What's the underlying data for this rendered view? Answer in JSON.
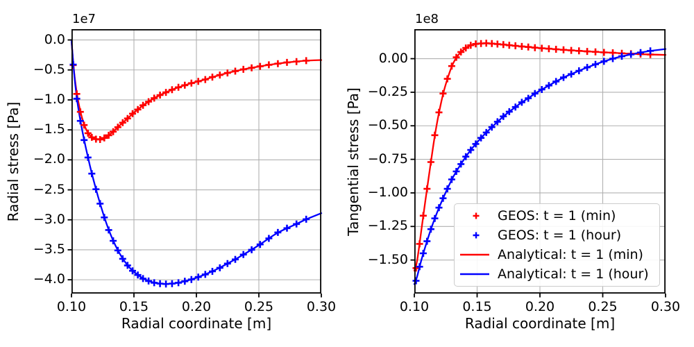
{
  "figure": {
    "background": "#ffffff"
  },
  "style": {
    "color_t1min": "#ff0000",
    "color_t1hour": "#0000ff",
    "grid_color": "#b0b0b0",
    "spine_color": "#000000",
    "text_color": "#000000",
    "legend_border_color": "#cccccc"
  },
  "left_plot": {
    "offset_label": "1e7",
    "ylabel": "Radial stress [Pa]",
    "xlabel": "Radial coordinate [m]",
    "xtick_labels": [
      "0.10",
      "0.15",
      "0.20",
      "0.25",
      "0.30"
    ],
    "ytick_labels": [
      "0.0",
      "−0.5",
      "−1.0",
      "−1.5",
      "−2.0",
      "−2.5",
      "−3.0",
      "−3.5",
      "−4.0"
    ]
  },
  "right_plot": {
    "offset_label": "1e8",
    "ylabel": "Tangential stress [Pa]",
    "xlabel": "Radial coordinate [m]",
    "xtick_labels": [
      "0.10",
      "0.15",
      "0.20",
      "0.25",
      "0.30"
    ],
    "ytick_labels": [
      "0.00",
      "−0.25",
      "−0.50",
      "−0.75",
      "−1.00",
      "−1.25",
      "−1.50"
    ],
    "legend": {
      "items": [
        {
          "label": "GEOS: t = 1 (min)",
          "type": "marker",
          "color": "#ff0000"
        },
        {
          "label": "GEOS: t = 1 (hour)",
          "type": "marker",
          "color": "#0000ff"
        },
        {
          "label": "Analytical: t = 1 (min)",
          "type": "line",
          "color": "#ff0000"
        },
        {
          "label": "Analytical: t = 1 (hour)",
          "type": "line",
          "color": "#0000ff"
        }
      ],
      "location": "lower right"
    }
  },
  "chart_data": [
    {
      "type": "line",
      "title": "",
      "xlabel": "Radial coordinate [m]",
      "ylabel": "Radial stress [Pa]",
      "y_scale_factor": "1e7",
      "grid": true,
      "xlim": [
        0.1,
        0.3
      ],
      "ylim": [
        -4.23,
        0.18
      ],
      "xticks": [
        0.1,
        0.15,
        0.2,
        0.25,
        0.3
      ],
      "yticks": [
        0.0,
        -0.5,
        -1.0,
        -1.5,
        -2.0,
        -2.5,
        -3.0,
        -3.5,
        -4.0
      ],
      "series": [
        {
          "name": "Analytical: t = 1 (min)",
          "style": "solid_line",
          "color": "#ff0000",
          "x": [
            0.1,
            0.1014,
            0.1042,
            0.1071,
            0.1101,
            0.1132,
            0.1163,
            0.1196,
            0.1229,
            0.1263,
            0.1298,
            0.1334,
            0.1371,
            0.141,
            0.1449,
            0.1489,
            0.1531,
            0.1573,
            0.1617,
            0.1662,
            0.1709,
            0.1756,
            0.1805,
            0.1856,
            0.1907,
            0.196,
            0.2015,
            0.2071,
            0.2128,
            0.2188,
            0.2249,
            0.2311,
            0.2376,
            0.2442,
            0.251,
            0.258,
            0.2652,
            0.2725,
            0.2801,
            0.2879,
            0.3
          ],
          "y": [
            0.0,
            -0.42,
            -0.9,
            -1.2,
            -1.42,
            -1.555,
            -1.625,
            -1.655,
            -1.66,
            -1.635,
            -1.59,
            -1.53,
            -1.455,
            -1.38,
            -1.31,
            -1.23,
            -1.16,
            -1.09,
            -1.03,
            -0.97,
            -0.92,
            -0.875,
            -0.83,
            -0.79,
            -0.755,
            -0.72,
            -0.69,
            -0.66,
            -0.62,
            -0.585,
            -0.55,
            -0.52,
            -0.49,
            -0.465,
            -0.44,
            -0.415,
            -0.395,
            -0.375,
            -0.36,
            -0.345,
            -0.335
          ]
        },
        {
          "name": "Analytical: t = 1 (hour)",
          "style": "solid_line",
          "color": "#0000ff",
          "x": [
            0.1,
            0.1014,
            0.1042,
            0.1071,
            0.1101,
            0.1132,
            0.1163,
            0.1196,
            0.1229,
            0.1263,
            0.1298,
            0.1334,
            0.1371,
            0.141,
            0.1449,
            0.1489,
            0.1531,
            0.1573,
            0.1617,
            0.1662,
            0.1709,
            0.1756,
            0.1805,
            0.1856,
            0.1907,
            0.196,
            0.2015,
            0.2071,
            0.2128,
            0.2188,
            0.2249,
            0.2311,
            0.2376,
            0.2442,
            0.251,
            0.258,
            0.2652,
            0.2725,
            0.2801,
            0.2879,
            0.3
          ],
          "y": [
            0.0,
            -0.41,
            -0.98,
            -1.35,
            -1.67,
            -1.96,
            -2.23,
            -2.49,
            -2.73,
            -2.96,
            -3.17,
            -3.35,
            -3.51,
            -3.65,
            -3.76,
            -3.85,
            -3.92,
            -3.98,
            -4.02,
            -4.05,
            -4.065,
            -4.07,
            -4.065,
            -4.05,
            -4.025,
            -3.995,
            -3.955,
            -3.91,
            -3.86,
            -3.8,
            -3.73,
            -3.66,
            -3.58,
            -3.5,
            -3.41,
            -3.31,
            -3.21,
            -3.14,
            -3.07,
            -2.99,
            -2.89
          ]
        },
        {
          "name": "GEOS: t = 1 (min)",
          "style": "plus_markers",
          "color": "#ff0000",
          "x": [
            0.1014,
            0.1042,
            0.1071,
            0.1101,
            0.1132,
            0.1163,
            0.1196,
            0.1229,
            0.1263,
            0.1298,
            0.1334,
            0.1371,
            0.141,
            0.1449,
            0.1489,
            0.1531,
            0.1573,
            0.1617,
            0.1662,
            0.1709,
            0.1756,
            0.1805,
            0.1856,
            0.1907,
            0.196,
            0.2015,
            0.2071,
            0.2128,
            0.2188,
            0.2249,
            0.2311,
            0.2376,
            0.2442,
            0.251,
            0.258,
            0.2652,
            0.2725,
            0.2801,
            0.2879
          ],
          "y": [
            -0.42,
            -0.9,
            -1.2,
            -1.42,
            -1.555,
            -1.625,
            -1.655,
            -1.66,
            -1.635,
            -1.59,
            -1.53,
            -1.455,
            -1.38,
            -1.31,
            -1.23,
            -1.16,
            -1.09,
            -1.03,
            -0.97,
            -0.92,
            -0.875,
            -0.83,
            -0.79,
            -0.755,
            -0.72,
            -0.69,
            -0.66,
            -0.62,
            -0.585,
            -0.55,
            -0.52,
            -0.49,
            -0.465,
            -0.44,
            -0.415,
            -0.395,
            -0.375,
            -0.36,
            -0.345
          ]
        },
        {
          "name": "GEOS: t = 1 (hour)",
          "style": "plus_markers",
          "color": "#0000ff",
          "x": [
            0.1014,
            0.1042,
            0.1071,
            0.1101,
            0.1132,
            0.1163,
            0.1196,
            0.1229,
            0.1263,
            0.1298,
            0.1334,
            0.1371,
            0.141,
            0.1449,
            0.1489,
            0.1531,
            0.1573,
            0.1617,
            0.1662,
            0.1709,
            0.1756,
            0.1805,
            0.1856,
            0.1907,
            0.196,
            0.2015,
            0.2071,
            0.2128,
            0.2188,
            0.2249,
            0.2311,
            0.2376,
            0.2442,
            0.251,
            0.258,
            0.2652,
            0.2725,
            0.2801,
            0.2879
          ],
          "y": [
            -0.41,
            -0.98,
            -1.35,
            -1.67,
            -1.96,
            -2.23,
            -2.49,
            -2.73,
            -2.96,
            -3.17,
            -3.35,
            -3.51,
            -3.65,
            -3.76,
            -3.85,
            -3.92,
            -3.98,
            -4.02,
            -4.05,
            -4.065,
            -4.07,
            -4.065,
            -4.05,
            -4.025,
            -3.995,
            -3.955,
            -3.91,
            -3.86,
            -3.8,
            -3.73,
            -3.66,
            -3.58,
            -3.5,
            -3.41,
            -3.31,
            -3.21,
            -3.14,
            -3.07,
            -2.99
          ]
        }
      ]
    },
    {
      "type": "line",
      "title": "",
      "xlabel": "Radial coordinate [m]",
      "ylabel": "Tangential stress [Pa]",
      "y_scale_factor": "1e8",
      "grid": true,
      "xlim": [
        0.1,
        0.3
      ],
      "ylim": [
        -1.75,
        0.22
      ],
      "xticks": [
        0.1,
        0.15,
        0.2,
        0.25,
        0.3
      ],
      "yticks": [
        0.0,
        -0.25,
        -0.5,
        -0.75,
        -1.0,
        -1.25,
        -1.5
      ],
      "legend_location": "lower right",
      "series": [
        {
          "name": "Analytical: t = 1 (min)",
          "style": "solid_line",
          "color": "#ff0000",
          "x": [
            0.1,
            0.1014,
            0.1042,
            0.1071,
            0.1101,
            0.1132,
            0.1163,
            0.1196,
            0.1229,
            0.1263,
            0.1298,
            0.1334,
            0.1371,
            0.141,
            0.1449,
            0.1489,
            0.1531,
            0.1573,
            0.1617,
            0.1662,
            0.1709,
            0.1756,
            0.1805,
            0.1856,
            0.1907,
            0.196,
            0.2015,
            0.2071,
            0.2128,
            0.2188,
            0.2249,
            0.2311,
            0.2376,
            0.2442,
            0.251,
            0.258,
            0.2652,
            0.2725,
            0.2801,
            0.2879,
            0.3
          ],
          "y": [
            -1.58,
            -1.56,
            -1.38,
            -1.17,
            -0.97,
            -0.77,
            -0.57,
            -0.4,
            -0.26,
            -0.15,
            -0.055,
            0.01,
            0.05,
            0.08,
            0.1,
            0.11,
            0.113,
            0.115,
            0.1125,
            0.109,
            0.105,
            0.1,
            0.096,
            0.091,
            0.087,
            0.082,
            0.078,
            0.074,
            0.07,
            0.066,
            0.062,
            0.058,
            0.054,
            0.051,
            0.047,
            0.044,
            0.04,
            0.037,
            0.034,
            0.031,
            0.028
          ]
        },
        {
          "name": "Analytical: t = 1 (hour)",
          "style": "solid_line",
          "color": "#0000ff",
          "x": [
            0.1,
            0.1014,
            0.1042,
            0.1071,
            0.1101,
            0.1132,
            0.1163,
            0.1196,
            0.1229,
            0.1263,
            0.1298,
            0.1334,
            0.1371,
            0.141,
            0.1449,
            0.1489,
            0.1531,
            0.1573,
            0.1617,
            0.1662,
            0.1709,
            0.1756,
            0.1805,
            0.1856,
            0.1907,
            0.196,
            0.2015,
            0.2071,
            0.2128,
            0.2188,
            0.2249,
            0.2311,
            0.2376,
            0.2442,
            0.251,
            0.258,
            0.2652,
            0.2725,
            0.2801,
            0.2879,
            0.3
          ],
          "y": [
            -1.68,
            -1.655,
            -1.55,
            -1.45,
            -1.36,
            -1.27,
            -1.19,
            -1.11,
            -1.04,
            -0.97,
            -0.9,
            -0.84,
            -0.785,
            -0.73,
            -0.68,
            -0.635,
            -0.59,
            -0.55,
            -0.51,
            -0.47,
            -0.43,
            -0.395,
            -0.36,
            -0.325,
            -0.295,
            -0.26,
            -0.23,
            -0.2,
            -0.17,
            -0.14,
            -0.115,
            -0.09,
            -0.065,
            -0.042,
            -0.02,
            0.0,
            0.018,
            0.032,
            0.046,
            0.058,
            0.072
          ]
        },
        {
          "name": "GEOS: t = 1 (min)",
          "style": "plus_markers",
          "color": "#ff0000",
          "x": [
            0.1014,
            0.1042,
            0.1071,
            0.1101,
            0.1132,
            0.1163,
            0.1196,
            0.1229,
            0.1263,
            0.1298,
            0.1334,
            0.1371,
            0.141,
            0.1449,
            0.1489,
            0.1531,
            0.1573,
            0.1617,
            0.1662,
            0.1709,
            0.1756,
            0.1805,
            0.1856,
            0.1907,
            0.196,
            0.2015,
            0.2071,
            0.2128,
            0.2188,
            0.2249,
            0.2311,
            0.2376,
            0.2442,
            0.251,
            0.258,
            0.2652,
            0.2725,
            0.2801,
            0.2879
          ],
          "y": [
            -1.56,
            -1.38,
            -1.17,
            -0.97,
            -0.77,
            -0.57,
            -0.4,
            -0.26,
            -0.15,
            -0.055,
            0.01,
            0.05,
            0.08,
            0.1,
            0.11,
            0.113,
            0.115,
            0.1125,
            0.109,
            0.105,
            0.1,
            0.096,
            0.091,
            0.087,
            0.082,
            0.078,
            0.074,
            0.07,
            0.066,
            0.062,
            0.058,
            0.054,
            0.051,
            0.047,
            0.044,
            0.04,
            0.037,
            0.034,
            0.031
          ]
        },
        {
          "name": "GEOS: t = 1 (hour)",
          "style": "plus_markers",
          "color": "#0000ff",
          "x": [
            0.1014,
            0.1042,
            0.1071,
            0.1101,
            0.1132,
            0.1163,
            0.1196,
            0.1229,
            0.1263,
            0.1298,
            0.1334,
            0.1371,
            0.141,
            0.1449,
            0.1489,
            0.1531,
            0.1573,
            0.1617,
            0.1662,
            0.1709,
            0.1756,
            0.1805,
            0.1856,
            0.1907,
            0.196,
            0.2015,
            0.2071,
            0.2128,
            0.2188,
            0.2249,
            0.2311,
            0.2376,
            0.2442,
            0.251,
            0.258,
            0.2652,
            0.2725,
            0.2801,
            0.2879
          ],
          "y": [
            -1.655,
            -1.55,
            -1.45,
            -1.36,
            -1.27,
            -1.19,
            -1.11,
            -1.04,
            -0.97,
            -0.9,
            -0.84,
            -0.785,
            -0.73,
            -0.68,
            -0.635,
            -0.59,
            -0.55,
            -0.51,
            -0.47,
            -0.43,
            -0.395,
            -0.36,
            -0.325,
            -0.295,
            -0.26,
            -0.23,
            -0.2,
            -0.17,
            -0.14,
            -0.115,
            -0.09,
            -0.065,
            -0.042,
            -0.02,
            0.0,
            0.018,
            0.032,
            0.046,
            0.058
          ]
        }
      ]
    }
  ]
}
